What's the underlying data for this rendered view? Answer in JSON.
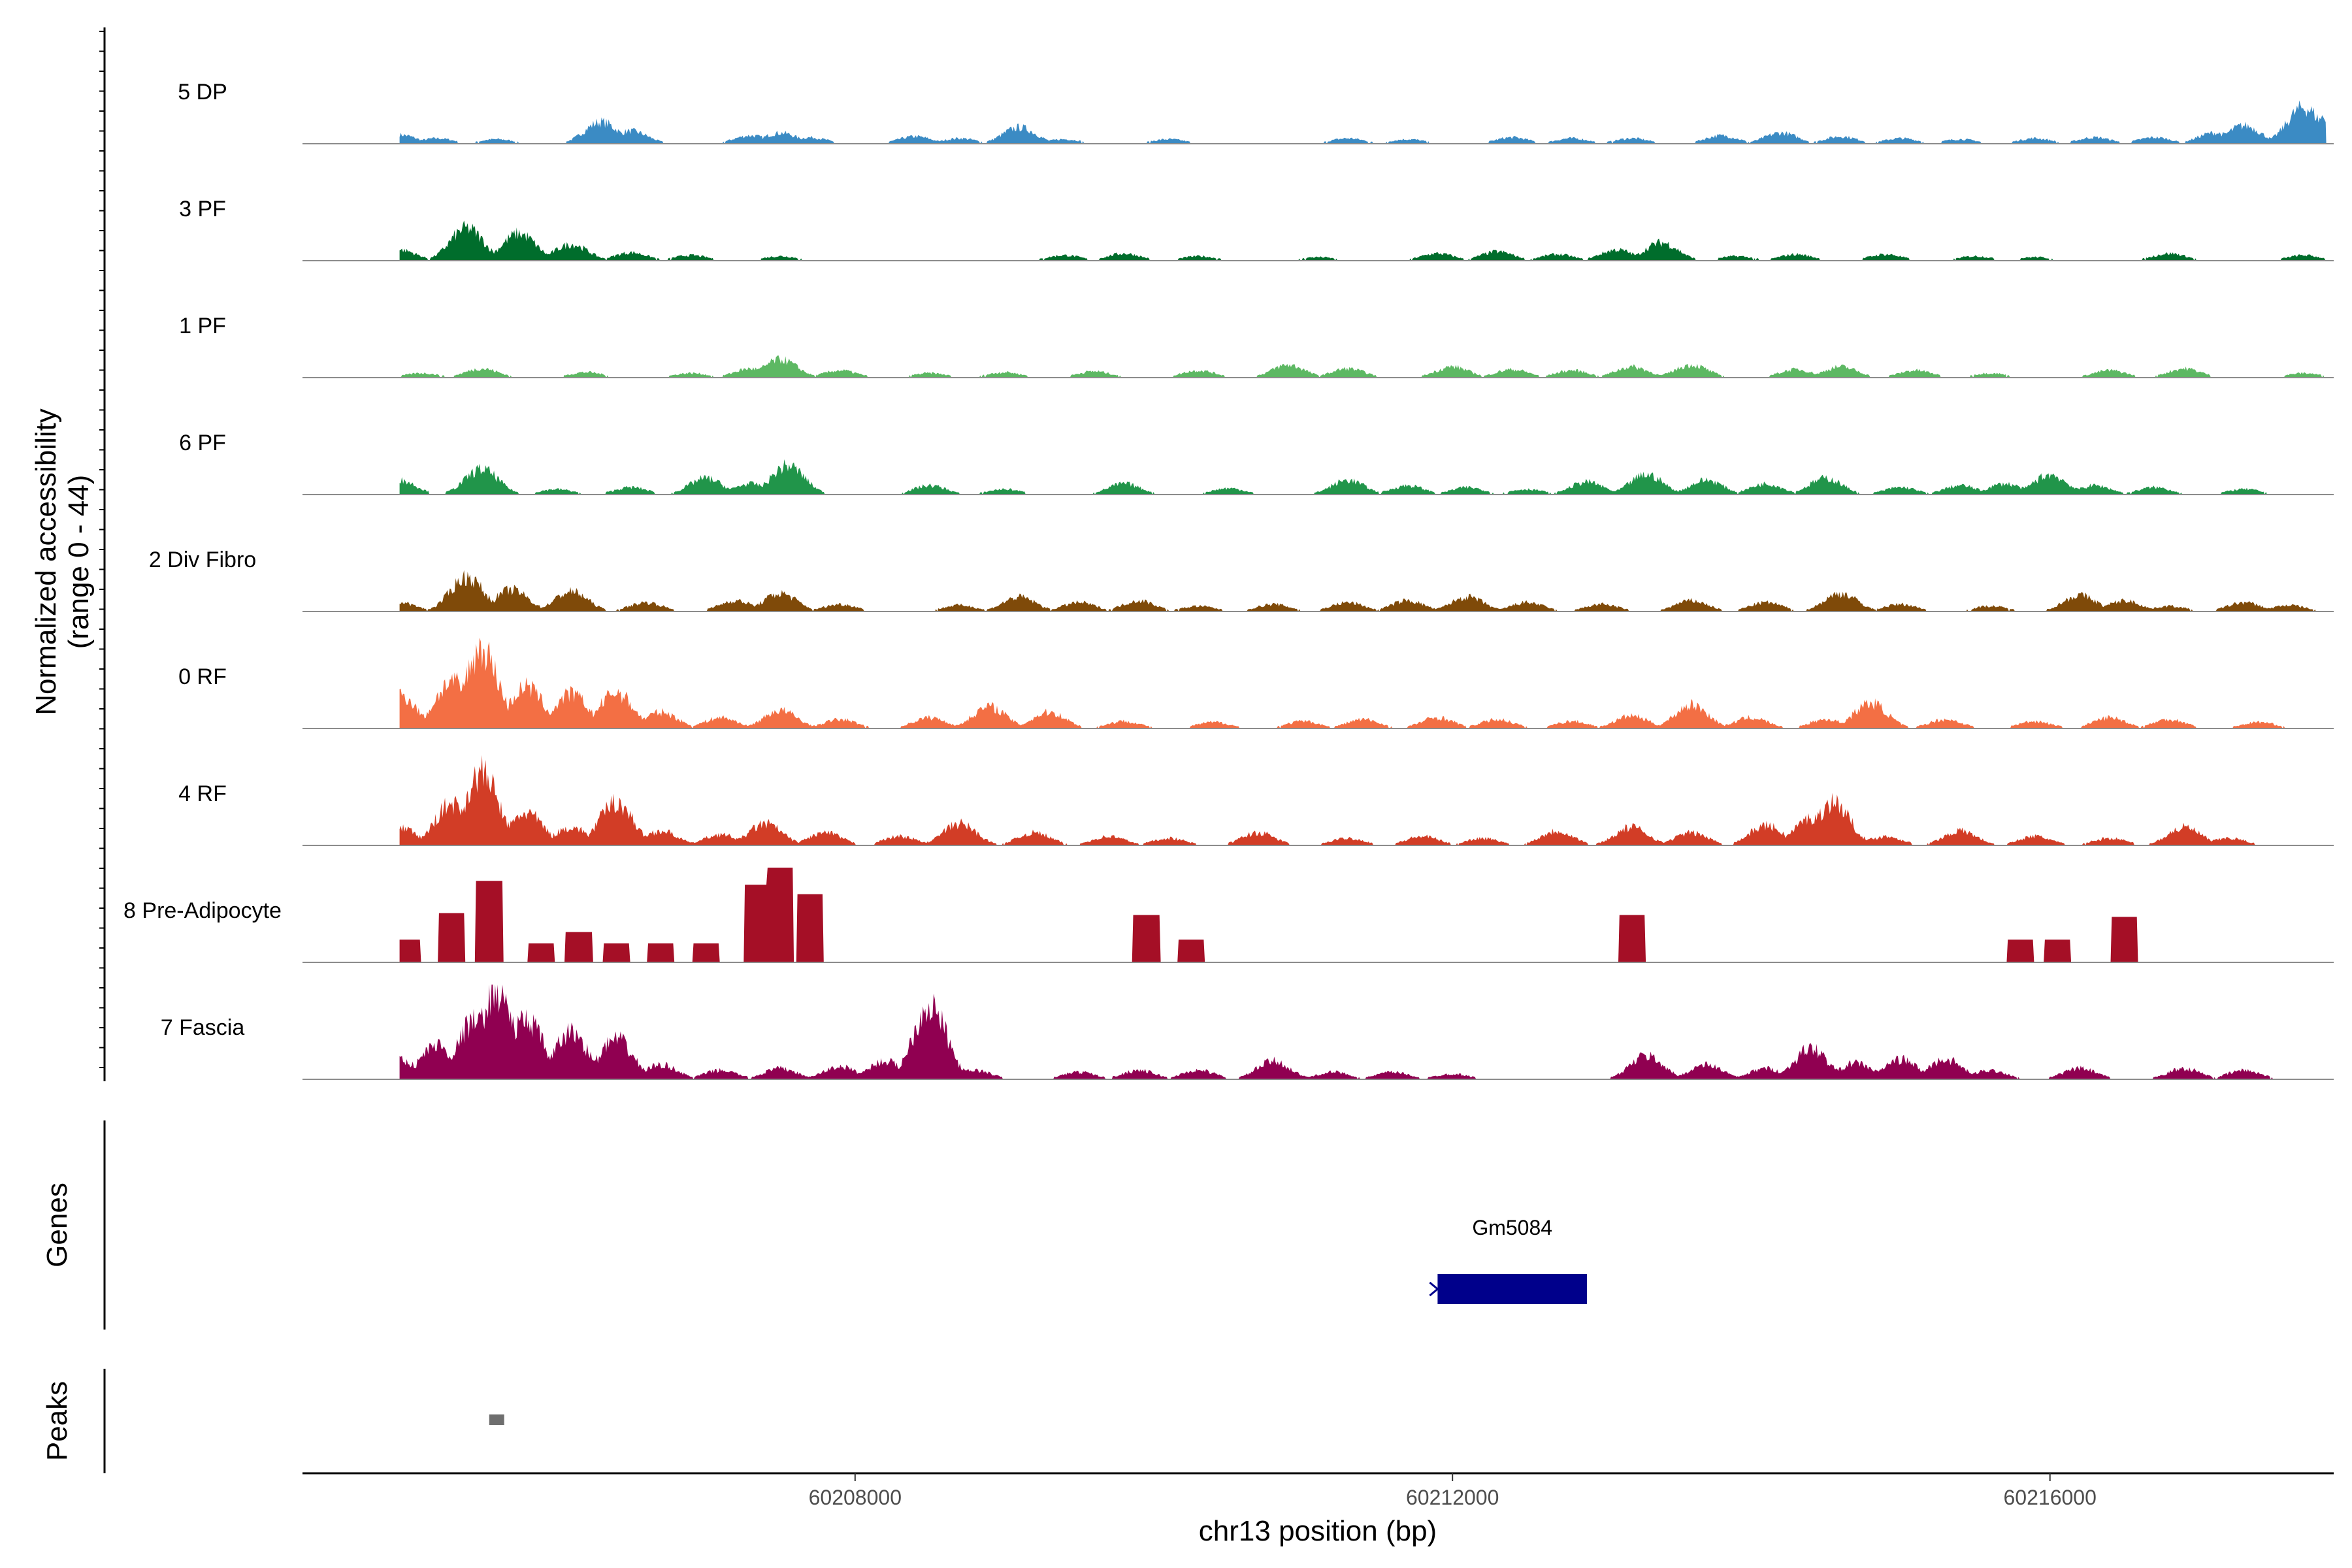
{
  "chart_data": {
    "type": "area",
    "y_axis": {
      "title_line1": "Normalized accessibility",
      "title_line2": "(range 0 - 44)",
      "ylim": [
        0,
        44
      ]
    },
    "x_axis": {
      "title": "chr13 position (bp)",
      "xlim": [
        60204300,
        60217900
      ],
      "ticks": [
        60208000,
        60212000,
        60216000
      ],
      "tick_labels": [
        "60208000",
        "60212000",
        "60216000"
      ]
    },
    "tracks": [
      {
        "name": "5 DP",
        "color": "#3B8BC4",
        "peaks": [
          [
            60204950,
            10
          ],
          [
            60205200,
            6
          ],
          [
            60205600,
            5
          ],
          [
            60206300,
            24
          ],
          [
            60206500,
            14
          ],
          [
            60207300,
            9
          ],
          [
            60207500,
            12
          ],
          [
            60207700,
            7
          ],
          [
            60208400,
            8
          ],
          [
            60208700,
            6
          ],
          [
            60209100,
            18
          ],
          [
            60209400,
            5
          ],
          [
            60210100,
            5
          ],
          [
            60211300,
            6
          ],
          [
            60211700,
            5
          ],
          [
            60212400,
            7
          ],
          [
            60212800,
            6
          ],
          [
            60213200,
            6
          ],
          [
            60213800,
            9
          ],
          [
            60214200,
            12
          ],
          [
            60214600,
            8
          ],
          [
            60215000,
            6
          ],
          [
            60215400,
            5
          ],
          [
            60215900,
            6
          ],
          [
            60216300,
            7
          ],
          [
            60216700,
            7
          ],
          [
            60217100,
            12
          ],
          [
            60217300,
            20
          ],
          [
            60217700,
            40
          ],
          [
            60217850,
            30
          ]
        ]
      },
      {
        "name": "3 PF",
        "color": "#006D2C",
        "peaks": [
          [
            60204950,
            12
          ],
          [
            60205400,
            36
          ],
          [
            60205750,
            30
          ],
          [
            60206100,
            18
          ],
          [
            60206500,
            9
          ],
          [
            60206900,
            6
          ],
          [
            60207500,
            5
          ],
          [
            60209400,
            6
          ],
          [
            60209800,
            8
          ],
          [
            60210300,
            5
          ],
          [
            60211100,
            4
          ],
          [
            60211900,
            8
          ],
          [
            60212300,
            10
          ],
          [
            60212700,
            7
          ],
          [
            60213100,
            12
          ],
          [
            60213400,
            20
          ],
          [
            60213900,
            5
          ],
          [
            60214300,
            7
          ],
          [
            60214900,
            7
          ],
          [
            60215500,
            5
          ],
          [
            60215900,
            4
          ],
          [
            60216800,
            8
          ],
          [
            60217700,
            6
          ]
        ]
      },
      {
        "name": "1 PF",
        "color": "#5DB863",
        "peaks": [
          [
            60205100,
            5
          ],
          [
            60205500,
            10
          ],
          [
            60206200,
            6
          ],
          [
            60206900,
            5
          ],
          [
            60207300,
            10
          ],
          [
            60207500,
            20
          ],
          [
            60207900,
            8
          ],
          [
            60208500,
            5
          ],
          [
            60209000,
            6
          ],
          [
            60209600,
            7
          ],
          [
            60210300,
            8
          ],
          [
            60210900,
            14
          ],
          [
            60211300,
            10
          ],
          [
            60212000,
            12
          ],
          [
            60212400,
            9
          ],
          [
            60212800,
            8
          ],
          [
            60213200,
            12
          ],
          [
            60213600,
            14
          ],
          [
            60214300,
            9
          ],
          [
            60214600,
            12
          ],
          [
            60215100,
            8
          ],
          [
            60215600,
            5
          ],
          [
            60216400,
            8
          ],
          [
            60216900,
            10
          ],
          [
            60217700,
            5
          ]
        ]
      },
      {
        "name": "6 PF",
        "color": "#21954A",
        "peaks": [
          [
            60204950,
            16
          ],
          [
            60205500,
            28
          ],
          [
            60206000,
            6
          ],
          [
            60206500,
            8
          ],
          [
            60207000,
            18
          ],
          [
            60207300,
            12
          ],
          [
            60207550,
            32
          ],
          [
            60208500,
            10
          ],
          [
            60209000,
            6
          ],
          [
            60209800,
            12
          ],
          [
            60210500,
            7
          ],
          [
            60211300,
            16
          ],
          [
            60211700,
            10
          ],
          [
            60212100,
            8
          ],
          [
            60212500,
            6
          ],
          [
            60212900,
            14
          ],
          [
            60213300,
            22
          ],
          [
            60213700,
            16
          ],
          [
            60214100,
            12
          ],
          [
            60214500,
            18
          ],
          [
            60215000,
            8
          ],
          [
            60215400,
            10
          ],
          [
            60215700,
            12
          ],
          [
            60216000,
            22
          ],
          [
            60216300,
            10
          ],
          [
            60216700,
            8
          ],
          [
            60217300,
            6
          ]
        ]
      },
      {
        "name": "2 Div Fibro",
        "color": "#7F4A09",
        "peaks": [
          [
            60204950,
            10
          ],
          [
            60205400,
            38
          ],
          [
            60205700,
            24
          ],
          [
            60206100,
            22
          ],
          [
            60206600,
            10
          ],
          [
            60207200,
            12
          ],
          [
            60207500,
            20
          ],
          [
            60207900,
            8
          ],
          [
            60208700,
            7
          ],
          [
            60209100,
            16
          ],
          [
            60209500,
            10
          ],
          [
            60209900,
            12
          ],
          [
            60210300,
            6
          ],
          [
            60210800,
            8
          ],
          [
            60211300,
            10
          ],
          [
            60211700,
            12
          ],
          [
            60212100,
            16
          ],
          [
            60212500,
            10
          ],
          [
            60213000,
            8
          ],
          [
            60213600,
            12
          ],
          [
            60214100,
            10
          ],
          [
            60214600,
            20
          ],
          [
            60215000,
            8
          ],
          [
            60215600,
            6
          ],
          [
            60216200,
            18
          ],
          [
            60216500,
            12
          ],
          [
            60216800,
            6
          ],
          [
            60217300,
            10
          ],
          [
            60217600,
            7
          ]
        ]
      },
      {
        "name": "0 RF",
        "color": "#F36F44",
        "peaks": [
          [
            60204950,
            38
          ],
          [
            60205300,
            52
          ],
          [
            60205500,
            88
          ],
          [
            60205800,
            46
          ],
          [
            60206100,
            38
          ],
          [
            60206400,
            40
          ],
          [
            60206700,
            18
          ],
          [
            60207100,
            12
          ],
          [
            60207500,
            20
          ],
          [
            60207900,
            10
          ],
          [
            60208500,
            12
          ],
          [
            60208900,
            24
          ],
          [
            60209300,
            18
          ],
          [
            60209800,
            8
          ],
          [
            60210400,
            7
          ],
          [
            60211000,
            8
          ],
          [
            60211400,
            10
          ],
          [
            60211900,
            12
          ],
          [
            60212300,
            10
          ],
          [
            60212800,
            8
          ],
          [
            60213200,
            14
          ],
          [
            60213600,
            26
          ],
          [
            60214000,
            12
          ],
          [
            60214500,
            10
          ],
          [
            60214800,
            28
          ],
          [
            60215300,
            10
          ],
          [
            60215900,
            8
          ],
          [
            60216400,
            12
          ],
          [
            60216800,
            10
          ],
          [
            60217400,
            7
          ]
        ]
      },
      {
        "name": "4 RF",
        "color": "#D23D26",
        "peaks": [
          [
            60204950,
            20
          ],
          [
            60205300,
            46
          ],
          [
            60205500,
            80
          ],
          [
            60205800,
            36
          ],
          [
            60206100,
            20
          ],
          [
            60206400,
            48
          ],
          [
            60206700,
            16
          ],
          [
            60207100,
            12
          ],
          [
            60207400,
            24
          ],
          [
            60207800,
            14
          ],
          [
            60208300,
            10
          ],
          [
            60208700,
            24
          ],
          [
            60209200,
            14
          ],
          [
            60209700,
            10
          ],
          [
            60210100,
            8
          ],
          [
            60210700,
            14
          ],
          [
            60211300,
            8
          ],
          [
            60211800,
            10
          ],
          [
            60212200,
            8
          ],
          [
            60212700,
            16
          ],
          [
            60213200,
            20
          ],
          [
            60213600,
            14
          ],
          [
            60214100,
            22
          ],
          [
            60214400,
            30
          ],
          [
            60214550,
            48
          ],
          [
            60214900,
            10
          ],
          [
            60215400,
            16
          ],
          [
            60215900,
            10
          ],
          [
            60216400,
            8
          ],
          [
            60216900,
            20
          ],
          [
            60217200,
            8
          ]
        ]
      },
      {
        "name": "8 Pre-Adipocyte",
        "color": "#A50F26",
        "peaks": [
          [
            60205000,
            24
          ],
          [
            60205300,
            52
          ],
          [
            60205550,
            86
          ],
          [
            60205900,
            20
          ],
          [
            60206150,
            32
          ],
          [
            60206400,
            20
          ],
          [
            60206700,
            20
          ],
          [
            60207000,
            20
          ],
          [
            60207350,
            82
          ],
          [
            60207500,
            100
          ],
          [
            60207700,
            72
          ],
          [
            60209950,
            50
          ],
          [
            60210250,
            24
          ],
          [
            60213200,
            50
          ],
          [
            60215800,
            24
          ],
          [
            60216050,
            24
          ],
          [
            60216500,
            48
          ]
        ]
      },
      {
        "name": "7 Fascia",
        "color": "#900051",
        "peaks": [
          [
            60204950,
            22
          ],
          [
            60205200,
            38
          ],
          [
            60205450,
            64
          ],
          [
            60205600,
            100
          ],
          [
            60205800,
            66
          ],
          [
            60206100,
            52
          ],
          [
            60206400,
            44
          ],
          [
            60206700,
            16
          ],
          [
            60207100,
            10
          ],
          [
            60207500,
            12
          ],
          [
            60207900,
            14
          ],
          [
            60208200,
            20
          ],
          [
            60208500,
            82
          ],
          [
            60208800,
            10
          ],
          [
            60209500,
            8
          ],
          [
            60209900,
            10
          ],
          [
            60210300,
            10
          ],
          [
            60210800,
            20
          ],
          [
            60211200,
            8
          ],
          [
            60211600,
            8
          ],
          [
            60212000,
            6
          ],
          [
            60213300,
            26
          ],
          [
            60213700,
            16
          ],
          [
            60214100,
            12
          ],
          [
            60214400,
            34
          ],
          [
            60214700,
            18
          ],
          [
            60215000,
            22
          ],
          [
            60215300,
            22
          ],
          [
            60215600,
            10
          ],
          [
            60216200,
            12
          ],
          [
            60216900,
            12
          ],
          [
            60217300,
            10
          ]
        ]
      }
    ],
    "genes": [
      {
        "name": "Gm5084",
        "start": 60211900,
        "end": 60212900,
        "color": "#00008B"
      }
    ],
    "peaks_track": [
      {
        "start": 60205550,
        "end": 60205650,
        "color": "#6E6E6E"
      }
    ],
    "panel_labels": {
      "genes": "Genes",
      "peaks": "Peaks"
    }
  }
}
